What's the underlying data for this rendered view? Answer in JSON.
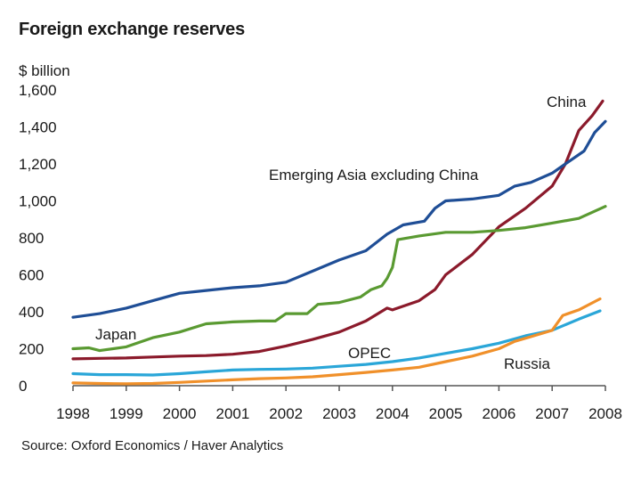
{
  "chart_data": {
    "type": "line",
    "title": "Foreign exchange reserves",
    "ylabel": "$ billion",
    "xlabel": "",
    "source": "Source: Oxford Economics / Haver Analytics",
    "xlim": [
      1998,
      2008
    ],
    "ylim": [
      0,
      1600
    ],
    "yticks": [
      0,
      200,
      400,
      600,
      800,
      1000,
      1200,
      1400,
      1600
    ],
    "ytick_labels": [
      "0",
      "200",
      "400",
      "600",
      "800",
      "1,000",
      "1,200",
      "1,400",
      "1,600"
    ],
    "xticks": [
      1998,
      1999,
      2000,
      2001,
      2002,
      2003,
      2004,
      2005,
      2006,
      2007,
      2008
    ],
    "xtick_labels": [
      "1998",
      "1999",
      "2000",
      "2001",
      "2002",
      "2003",
      "2004",
      "2005",
      "2006",
      "2007",
      "2008"
    ],
    "grid": false,
    "series": [
      {
        "name": "China",
        "color": "#8b1a2b",
        "x": [
          1998,
          1998.5,
          1999,
          1999.5,
          2000,
          2000.5,
          2001,
          2001.5,
          2002,
          2002.5,
          2003,
          2003.5,
          2003.9,
          2004.0,
          2004.5,
          2004.8,
          2005,
          2005.5,
          2006,
          2006.5,
          2007,
          2007.25,
          2007.5,
          2007.75,
          2007.95
        ],
        "y": [
          145,
          148,
          150,
          155,
          160,
          163,
          170,
          185,
          215,
          250,
          290,
          350,
          420,
          410,
          460,
          520,
          600,
          710,
          860,
          960,
          1080,
          1200,
          1380,
          1460,
          1540
        ]
      },
      {
        "name": "Emerging Asia excluding China",
        "color": "#1f4e96",
        "x": [
          1998,
          1998.5,
          1999,
          1999.5,
          2000,
          2000.5,
          2001,
          2001.5,
          2002,
          2002.5,
          2003,
          2003.5,
          2003.9,
          2004.2,
          2004.6,
          2004.8,
          2005,
          2005.5,
          2006,
          2006.3,
          2006.6,
          2007,
          2007.3,
          2007.6,
          2007.8,
          2008
        ],
        "y": [
          370,
          390,
          420,
          460,
          500,
          515,
          530,
          540,
          560,
          620,
          680,
          730,
          820,
          870,
          890,
          960,
          1000,
          1010,
          1030,
          1080,
          1100,
          1150,
          1210,
          1270,
          1370,
          1430
        ]
      },
      {
        "name": "Japan",
        "color": "#5a9a32",
        "x": [
          1998,
          1998.3,
          1998.5,
          1999,
          1999.5,
          2000,
          2000.5,
          2001,
          2001.5,
          2001.8,
          2002,
          2002.4,
          2002.6,
          2003,
          2003.4,
          2003.6,
          2003.8,
          2003.9,
          2004,
          2004.1,
          2004.5,
          2005,
          2005.5,
          2006,
          2006.5,
          2007,
          2007.5,
          2008
        ],
        "y": [
          200,
          205,
          190,
          210,
          260,
          290,
          335,
          345,
          350,
          350,
          390,
          390,
          440,
          450,
          480,
          520,
          540,
          580,
          640,
          790,
          810,
          830,
          830,
          840,
          855,
          880,
          905,
          970
        ]
      },
      {
        "name": "OPEC",
        "color": "#2aa6d8",
        "x": [
          1998,
          1998.5,
          1999,
          1999.5,
          2000,
          2000.5,
          2001,
          2001.5,
          2002,
          2002.5,
          2003,
          2003.5,
          2004,
          2004.5,
          2005,
          2005.5,
          2006,
          2006.5,
          2007,
          2007.5,
          2007.9
        ],
        "y": [
          65,
          60,
          60,
          58,
          65,
          75,
          85,
          88,
          90,
          95,
          105,
          115,
          130,
          150,
          175,
          200,
          230,
          270,
          300,
          360,
          405
        ]
      },
      {
        "name": "Russia",
        "color": "#f0902a",
        "x": [
          1998,
          1998.5,
          1999,
          1999.5,
          2000,
          2000.5,
          2001,
          2001.5,
          2002,
          2002.5,
          2003,
          2003.5,
          2004,
          2004.5,
          2005,
          2005.5,
          2006,
          2006.3,
          2006.6,
          2007,
          2007.2,
          2007.5,
          2007.9
        ],
        "y": [
          15,
          12,
          10,
          12,
          18,
          25,
          32,
          38,
          42,
          48,
          60,
          72,
          85,
          100,
          130,
          160,
          200,
          240,
          265,
          300,
          380,
          410,
          470
        ]
      }
    ],
    "annotations": [
      {
        "text": "China",
        "series": "China"
      },
      {
        "text": "Emerging Asia excluding China",
        "series": "Emerging Asia excluding China"
      },
      {
        "text": "Japan",
        "series": "Japan"
      },
      {
        "text": "OPEC",
        "series": "OPEC"
      },
      {
        "text": "Russia",
        "series": "Russia"
      }
    ]
  }
}
